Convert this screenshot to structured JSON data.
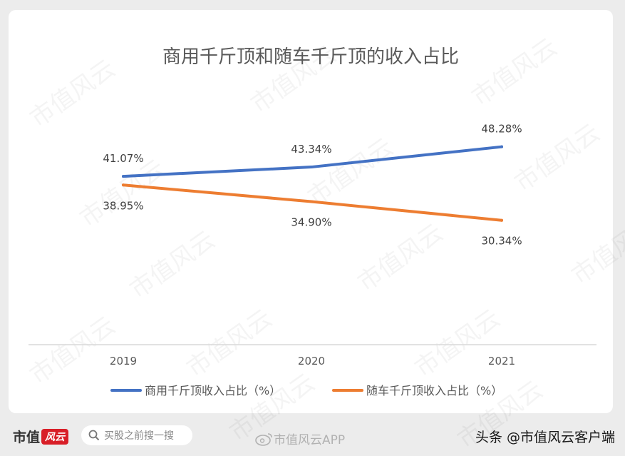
{
  "chart_data": {
    "type": "line",
    "title": "商用千斤顶和随车千斤顶的收入占比",
    "categories": [
      "2019",
      "2020",
      "2021"
    ],
    "series": [
      {
        "name": "商用千斤顶收入占比（%）",
        "values": [
          41.07,
          43.34,
          48.28
        ],
        "labels": [
          "41.07%",
          "43.34%",
          "48.28%"
        ],
        "color": "#4472c4"
      },
      {
        "name": "随车千斤顶收入占比（%）",
        "values": [
          38.95,
          34.9,
          30.34
        ],
        "labels": [
          "38.95%",
          "34.90%",
          "30.34%"
        ],
        "color": "#ed7d31"
      }
    ],
    "ylim": [
      0,
      60
    ],
    "grid": false,
    "legend": "bottom"
  },
  "watermark_text": "市值风云",
  "footer": {
    "brand_text": "市值",
    "brand_logo_text": "风云",
    "search_placeholder": "买股之前搜一搜",
    "weibo_text": "市值风云APP",
    "toutiao_text": "头条 @市值风云客户端"
  }
}
